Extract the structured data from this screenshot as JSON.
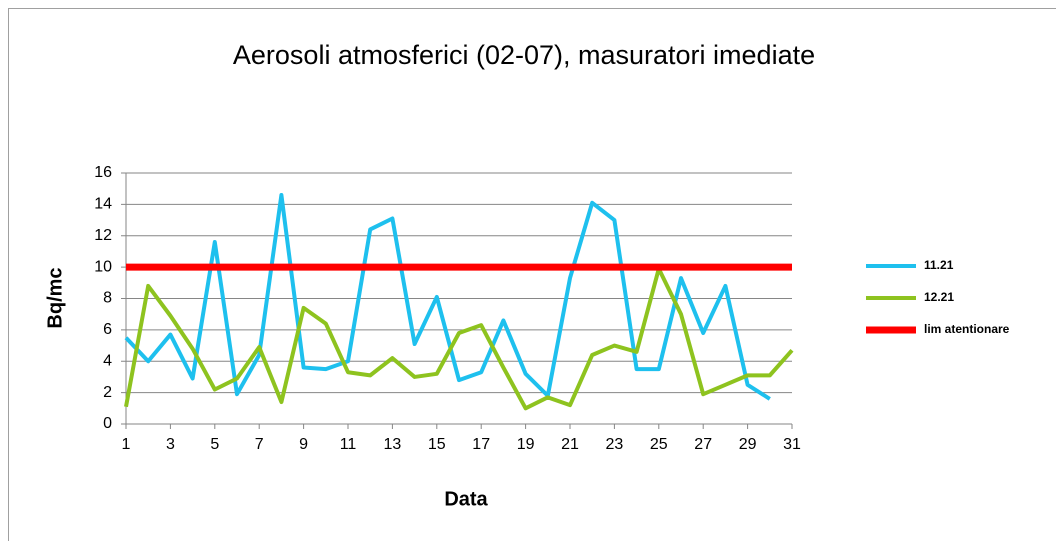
{
  "chart_data": {
    "type": "line",
    "title": "Aerosoli atmosferici (02-07), masuratori imediate",
    "xlabel": "Data",
    "ylabel": "Bq/mc",
    "x": [
      1,
      2,
      3,
      4,
      5,
      6,
      7,
      8,
      9,
      10,
      11,
      12,
      13,
      14,
      15,
      16,
      17,
      18,
      19,
      20,
      21,
      22,
      23,
      24,
      25,
      26,
      27,
      28,
      29,
      30,
      31
    ],
    "xlim": [
      1,
      31
    ],
    "xticks": [
      1,
      3,
      5,
      7,
      9,
      11,
      13,
      15,
      17,
      19,
      21,
      23,
      25,
      27,
      29,
      31
    ],
    "ylim": [
      0,
      16
    ],
    "yticks": [
      0,
      2,
      4,
      6,
      8,
      10,
      12,
      14,
      16
    ],
    "grid": true,
    "legend": "right",
    "series": [
      {
        "name": "11.21",
        "color": "#1ec0ee",
        "width": 4,
        "values": [
          5.5,
          4.0,
          5.7,
          2.9,
          11.6,
          1.9,
          4.4,
          14.6,
          3.6,
          3.5,
          4.0,
          12.4,
          13.1,
          5.1,
          8.1,
          2.8,
          3.3,
          6.6,
          3.2,
          1.8,
          9.3,
          14.1,
          13.0,
          3.5,
          3.5,
          9.3,
          5.8,
          8.8,
          2.5,
          1.6,
          null
        ]
      },
      {
        "name": "12.21",
        "color": "#8ec31f",
        "width": 4,
        "values": [
          1.1,
          8.8,
          6.9,
          4.8,
          2.2,
          2.9,
          4.9,
          1.4,
          7.4,
          6.4,
          3.3,
          3.1,
          4.2,
          3.0,
          3.2,
          5.8,
          6.3,
          3.6,
          1.0,
          1.7,
          1.2,
          4.4,
          5.0,
          4.6,
          9.9,
          7.0,
          1.9,
          2.5,
          3.1,
          3.1,
          4.7
        ]
      },
      {
        "name": "lim atentionare",
        "color": "#ff0000",
        "width": 7,
        "values": [
          10,
          10,
          10,
          10,
          10,
          10,
          10,
          10,
          10,
          10,
          10,
          10,
          10,
          10,
          10,
          10,
          10,
          10,
          10,
          10,
          10,
          10,
          10,
          10,
          10,
          10,
          10,
          10,
          10,
          10,
          10
        ]
      }
    ]
  }
}
